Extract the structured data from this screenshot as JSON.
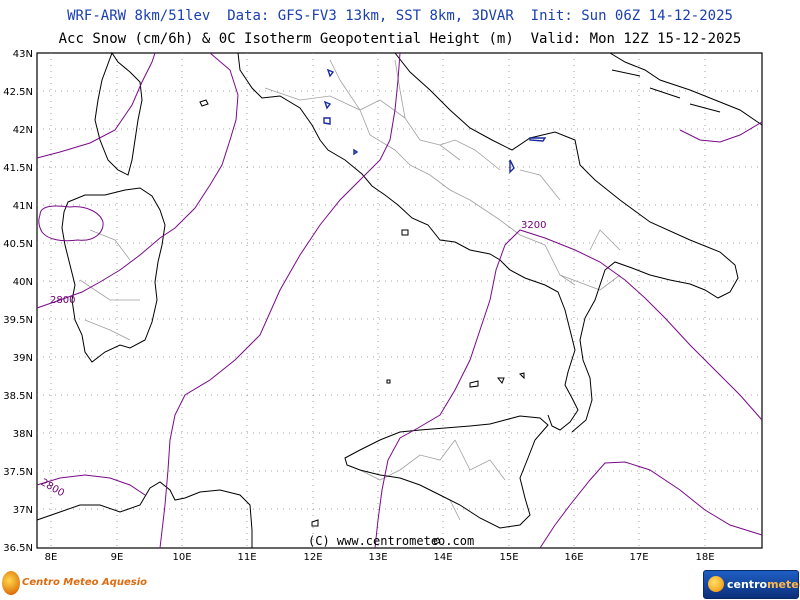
{
  "header": {
    "line1": "WRF-ARW 8km/51lev  Data: GFS-FV3 13km, SST 8km, 3DVAR  Init: Sun 06Z 14-12-2025",
    "line2": "Acc Snow (cm/6h) & 0C Isotherm Geopotential Height (m)  Valid: Mon 12Z 15-12-2025"
  },
  "map": {
    "lat_labels": [
      "43N",
      "42.5N",
      "42N",
      "41.5N",
      "41N",
      "40.5N",
      "40N",
      "39.5N",
      "39N",
      "38.5N",
      "38N",
      "37.5N",
      "37N",
      "36.5N"
    ],
    "lon_labels": [
      "8E",
      "9E",
      "10E",
      "11E",
      "12E",
      "13E",
      "14E",
      "15E",
      "16E",
      "17E",
      "18E"
    ],
    "contour_labels": [
      "2800",
      "3200",
      "2800"
    ],
    "copyright": "(C) www.centrometeo.com",
    "colors": {
      "coast": "#000000",
      "borders": "#a0a0a0",
      "isotherm": "#7a0a8a",
      "snow": "#1a2aa0",
      "grid": "#888888"
    }
  },
  "logos": {
    "left_text": "Centro Meteo Aquesio",
    "right_text_a": "centro",
    "right_text_b": "meteo"
  }
}
